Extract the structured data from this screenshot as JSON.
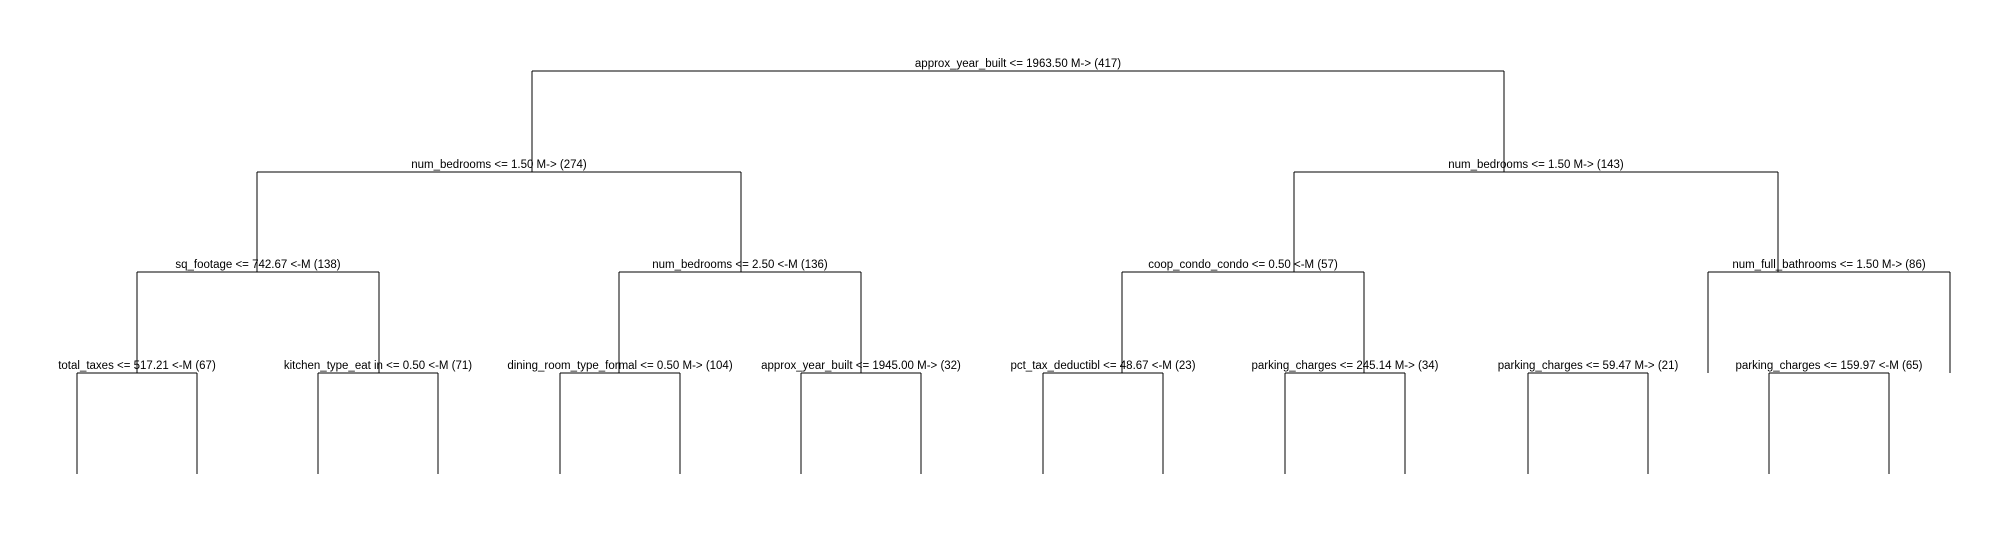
{
  "tree": {
    "nodes": [
      {
        "id": "n0",
        "label": "approx_year_built <= 1963.50 M-> (417)",
        "parent": null,
        "depth": 0
      },
      {
        "id": "n1",
        "label": "num_bedrooms <= 1.50 M-> (274)",
        "parent": "n0",
        "depth": 1
      },
      {
        "id": "n2",
        "label": "num_bedrooms <= 1.50 M-> (143)",
        "parent": "n0",
        "depth": 1
      },
      {
        "id": "n3",
        "label": "sq_footage <= 742.67 <-M (138)",
        "parent": "n1",
        "depth": 2
      },
      {
        "id": "n4",
        "label": "num_bedrooms <= 2.50 <-M (136)",
        "parent": "n1",
        "depth": 2
      },
      {
        "id": "n5",
        "label": "coop_condo_condo <= 0.50 <-M (57)",
        "parent": "n2",
        "depth": 2
      },
      {
        "id": "n6",
        "label": "num_full_bathrooms <= 1.50 M-> (86)",
        "parent": "n2",
        "depth": 2
      },
      {
        "id": "n7",
        "label": "total_taxes <= 517.21 <-M (67)",
        "parent": "n3",
        "depth": 3
      },
      {
        "id": "n8",
        "label": "kitchen_type_eat in <= 0.50 <-M (71)",
        "parent": "n3",
        "depth": 3
      },
      {
        "id": "n9",
        "label": "dining_room_type_formal <= 0.50 M-> (104)",
        "parent": "n4",
        "depth": 3
      },
      {
        "id": "n10",
        "label": "approx_year_built <= 1945.00 M-> (32)",
        "parent": "n4",
        "depth": 3
      },
      {
        "id": "n11",
        "label": "pct_tax_deductibl <= 48.67 <-M (23)",
        "parent": "n5",
        "depth": 3
      },
      {
        "id": "n12",
        "label": "parking_charges <= 245.14 M-> (34)",
        "parent": "n5",
        "depth": 3
      },
      {
        "id": "n13",
        "label": "parking_charges <= 59.47 M-> (21)",
        "parent": "n6",
        "depth": 3
      },
      {
        "id": "n14",
        "label": "parking_charges <= 159.97 <-M (65)",
        "parent": "n6",
        "depth": 3
      }
    ],
    "line_color": "#000000",
    "text_color": "#000000",
    "background": "#ffffff"
  }
}
